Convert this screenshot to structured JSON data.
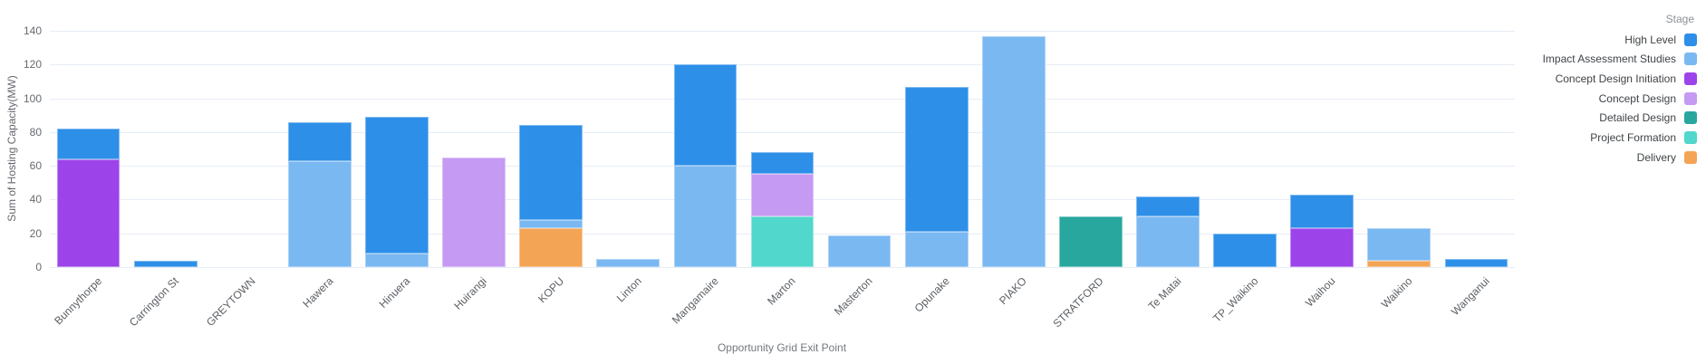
{
  "chart_data": {
    "type": "bar",
    "stacked": true,
    "title": "",
    "xlabel": "Opportunity Grid Exit Point",
    "ylabel": "Sum of Hosting Capacity(MW)",
    "legend_title": "Stage",
    "legend_position": "top-right",
    "grid": true,
    "gridline_color": "#e7edf6",
    "ylim": [
      0,
      140
    ],
    "yticks": [
      0,
      20,
      40,
      60,
      80,
      100,
      120,
      140
    ],
    "series": [
      {
        "name": "High Level",
        "color": "#2e8fe8"
      },
      {
        "name": "Impact Assessment Studies",
        "color": "#7ab8f1"
      },
      {
        "name": "Concept Design Initiation",
        "color": "#9c44ea"
      },
      {
        "name": "Concept Design",
        "color": "#c59af2"
      },
      {
        "name": "Detailed Design",
        "color": "#28a79e"
      },
      {
        "name": "Project Formation",
        "color": "#51d7cb"
      },
      {
        "name": "Delivery",
        "color": "#f4a455"
      }
    ],
    "categories": [
      "Bunnythorpe",
      "Carrington St",
      "GREYTOWN",
      "Hawera",
      "Hinuera",
      "Huirangi",
      "KOPU",
      "Linton",
      "Mangamaire",
      "Marton",
      "Masterton",
      "Opunake",
      "PIAKO",
      "STRATFORD",
      "Te Matai",
      "TP_Waikino",
      "Waihou",
      "Waikino",
      "Wanganui"
    ],
    "bars": [
      {
        "category": "Bunnythorpe",
        "segments": [
          {
            "stage": "Concept Design Initiation",
            "value": 64
          },
          {
            "stage": "High Level",
            "value": 18
          }
        ]
      },
      {
        "category": "Carrington St",
        "segments": [
          {
            "stage": "High Level",
            "value": 4
          }
        ]
      },
      {
        "category": "GREYTOWN",
        "segments": []
      },
      {
        "category": "Hawera",
        "segments": [
          {
            "stage": "Impact Assessment Studies",
            "value": 63
          },
          {
            "stage": "High Level",
            "value": 23
          }
        ]
      },
      {
        "category": "Hinuera",
        "segments": [
          {
            "stage": "Impact Assessment Studies",
            "value": 8
          },
          {
            "stage": "High Level",
            "value": 81
          }
        ]
      },
      {
        "category": "Huirangi",
        "segments": [
          {
            "stage": "Concept Design",
            "value": 65
          }
        ]
      },
      {
        "category": "KOPU",
        "segments": [
          {
            "stage": "Delivery",
            "value": 23
          },
          {
            "stage": "Impact Assessment Studies",
            "value": 5
          },
          {
            "stage": "High Level",
            "value": 56
          }
        ]
      },
      {
        "category": "Linton",
        "segments": [
          {
            "stage": "Impact Assessment Studies",
            "value": 5
          }
        ]
      },
      {
        "category": "Mangamaire",
        "segments": [
          {
            "stage": "Impact Assessment Studies",
            "value": 60
          },
          {
            "stage": "High Level",
            "value": 60
          }
        ]
      },
      {
        "category": "Marton",
        "segments": [
          {
            "stage": "Project Formation",
            "value": 30
          },
          {
            "stage": "Concept Design",
            "value": 25
          },
          {
            "stage": "High Level",
            "value": 13
          }
        ]
      },
      {
        "category": "Masterton",
        "segments": [
          {
            "stage": "Impact Assessment Studies",
            "value": 19
          }
        ]
      },
      {
        "category": "Opunake",
        "segments": [
          {
            "stage": "Impact Assessment Studies",
            "value": 21
          },
          {
            "stage": "High Level",
            "value": 86
          }
        ]
      },
      {
        "category": "PIAKO",
        "segments": [
          {
            "stage": "Impact Assessment Studies",
            "value": 137
          }
        ]
      },
      {
        "category": "STRATFORD",
        "segments": [
          {
            "stage": "Detailed Design",
            "value": 30
          }
        ]
      },
      {
        "category": "Te Matai",
        "segments": [
          {
            "stage": "Impact Assessment Studies",
            "value": 30
          },
          {
            "stage": "High Level",
            "value": 12
          }
        ]
      },
      {
        "category": "TP_Waikino",
        "segments": [
          {
            "stage": "High Level",
            "value": 20
          }
        ]
      },
      {
        "category": "Waihou",
        "segments": [
          {
            "stage": "Concept Design Initiation",
            "value": 23
          },
          {
            "stage": "High Level",
            "value": 20
          }
        ]
      },
      {
        "category": "Waikino",
        "segments": [
          {
            "stage": "Delivery",
            "value": 4
          },
          {
            "stage": "Impact Assessment Studies",
            "value": 19
          }
        ]
      },
      {
        "category": "Wanganui",
        "segments": [
          {
            "stage": "High Level",
            "value": 5
          }
        ]
      }
    ]
  }
}
